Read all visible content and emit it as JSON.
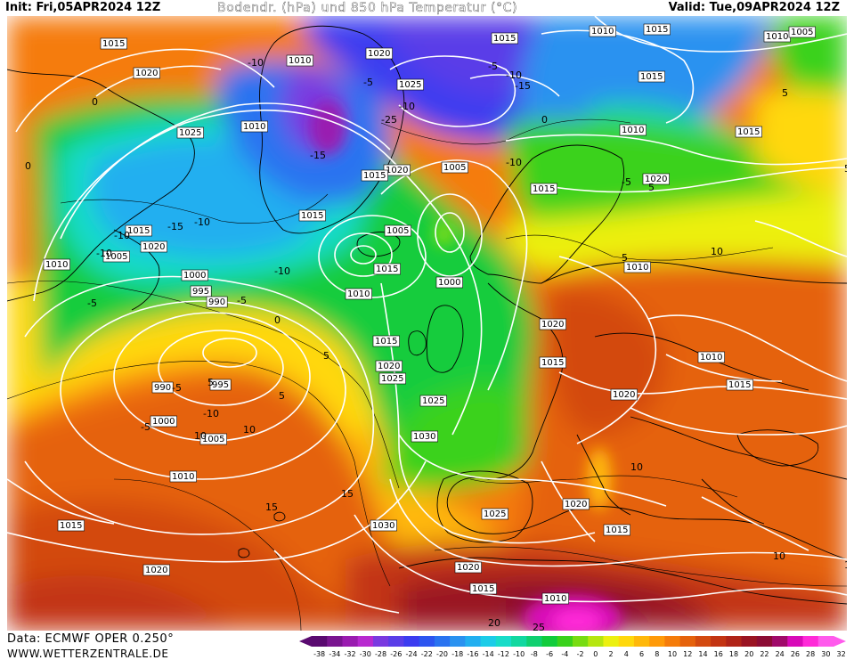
{
  "header": {
    "init": "Init: Fri,05APR2024 12Z",
    "title": "Bodendr. (hPa) und 850 hPa Temperatur (°C)",
    "valid": "Valid: Tue,09APR2024 12Z"
  },
  "footer": {
    "data_source": "Data: ECMWF OPER 0.250°",
    "website": "WWW.WETTERZENTRALE.DE"
  },
  "legend": {
    "ticks": [
      "-38",
      "-34",
      "-32",
      "-30",
      "-28",
      "-26",
      "-24",
      "-22",
      "-20",
      "-18",
      "-16",
      "-14",
      "-12",
      "-10",
      "-8",
      "-6",
      "-4",
      "-2",
      "0",
      "2",
      "4",
      "6",
      "8",
      "10",
      "12",
      "14",
      "16",
      "18",
      "20",
      "22",
      "24",
      "26",
      "28",
      "30",
      "32"
    ],
    "colors": [
      "#5a0a70",
      "#7a1590",
      "#9a1cb0",
      "#b82ad0",
      "#7a3ae0",
      "#5a3ee8",
      "#3c3cf0",
      "#2d55f0",
      "#2a73f0",
      "#2a92f0",
      "#22aff0",
      "#1ccce8",
      "#18dcc8",
      "#12d8a0",
      "#10d070",
      "#12cc3c",
      "#3ad21c",
      "#78dc12",
      "#b6e610",
      "#ecf010",
      "#ffd80c",
      "#ffb80a",
      "#ff9a08",
      "#f57c0a",
      "#e5620c",
      "#d34a10",
      "#c33412",
      "#b02418",
      "#9a1422",
      "#8c0c34",
      "#a00a6a",
      "#d80ab8",
      "#ff2ad8",
      "#ff5aec"
    ]
  },
  "map": {
    "isobar_labels": [
      "1015",
      "1020",
      "1025",
      "1020",
      "1015",
      "1010",
      "1005",
      "1000",
      "995",
      "990",
      "995",
      "990",
      "1000",
      "1005",
      "1010",
      "1015",
      "1020",
      "1030",
      "1025",
      "1020",
      "1015",
      "1010",
      "1015",
      "1020",
      "1025",
      "1030",
      "1025",
      "1020",
      "1015",
      "1010",
      "1015",
      "1020",
      "1025",
      "1015",
      "1010",
      "1005",
      "1000",
      "1005",
      "1010",
      "1015",
      "1020",
      "1015",
      "1010",
      "1015",
      "1010",
      "1005",
      "1015",
      "1010",
      "1015",
      "1020",
      "1015",
      "1010",
      "1020",
      "1015",
      "1010",
      "1015",
      "1020"
    ],
    "temperature_labels": [
      "-5",
      "-10",
      "-15",
      "-20",
      "-25",
      "0",
      "5",
      "10",
      "15",
      "20",
      "25"
    ],
    "isobar_color": "#ffffff",
    "isotherm_color": "#000000"
  }
}
